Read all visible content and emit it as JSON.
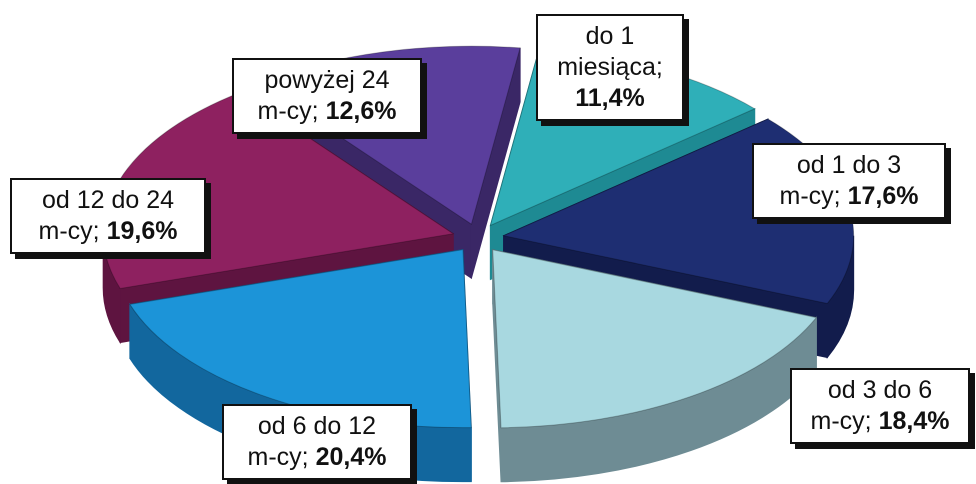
{
  "chart_data": {
    "type": "pie",
    "style": "3d-exploded",
    "title": "",
    "slices": [
      {
        "line1": "do 1",
        "line2": "miesiąca;",
        "value": 11.4,
        "value_label": "11,4%",
        "color": "#2FAFB8",
        "side_color": "#1E8A93"
      },
      {
        "line1": "od 1 do 3",
        "line2": "m-cy;",
        "value": 17.6,
        "value_label": "17,6%",
        "color": "#1E2E72",
        "side_color": "#121C4C"
      },
      {
        "line1": "od 3 do 6",
        "line2": "m-cy;",
        "value": 18.4,
        "value_label": "18,4%",
        "color": "#A8D8E0",
        "side_color": "#6E8C94"
      },
      {
        "line1": "od 6 do 12",
        "line2": "m-cy;",
        "value": 20.4,
        "value_label": "20,4%",
        "color": "#1C94D8",
        "side_color": "#12679E"
      },
      {
        "line1": "od 12 do 24",
        "line2": "m-cy;",
        "value": 19.6,
        "value_label": "19,6%",
        "color": "#8E2160",
        "side_color": "#5E1440"
      },
      {
        "line1": "powyżej 24",
        "line2": "m-cy;",
        "value": 12.6,
        "value_label": "12,6%",
        "color": "#5A3E9C",
        "side_color": "#3A2766"
      }
    ],
    "legend": "none"
  }
}
